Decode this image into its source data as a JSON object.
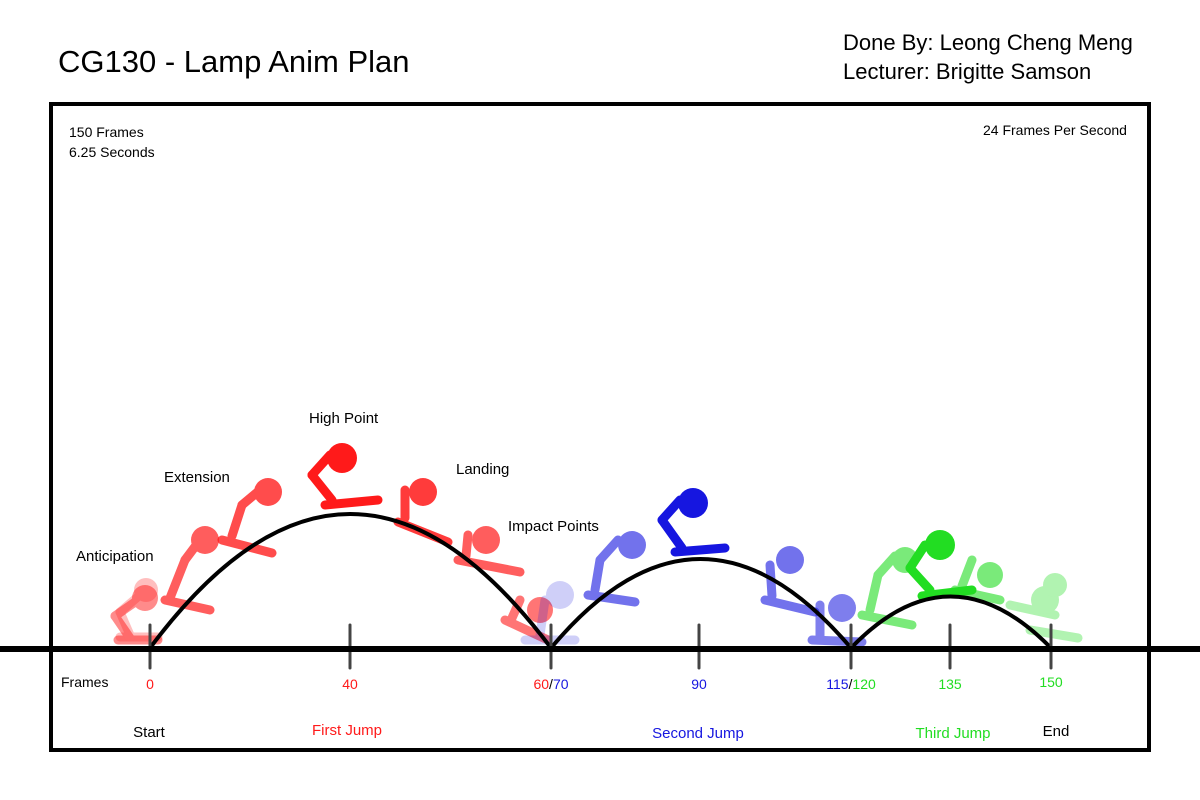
{
  "header": {
    "title": "CG130 - Lamp Anim Plan",
    "done_by": "Done By: Leong Cheng Meng",
    "lecturer": "Lecturer: Brigitte Samson"
  },
  "info": {
    "frames_total": "150 Frames",
    "seconds": "6.25 Seconds",
    "fps": "24 Frames Per Second"
  },
  "poses": {
    "anticipation": "Anticipation",
    "extension": "Extension",
    "high_point": "High Point",
    "landing": "Landing",
    "impact_points": "Impact Points"
  },
  "timeline": {
    "frames_label": "Frames",
    "f0": "0",
    "f40": "40",
    "f60": "60",
    "slash": "/",
    "f70": "70",
    "f90": "90",
    "f115": "115",
    "f120": "120",
    "f135": "135",
    "f150": "150"
  },
  "sections": {
    "start": "Start",
    "first_jump": "First Jump",
    "second_jump": "Second Jump",
    "third_jump": "Third Jump",
    "end": "End"
  },
  "colors": {
    "first": "#ff1a1a",
    "second": "#1616e0",
    "third": "#22dd22",
    "outline": "#000000"
  }
}
